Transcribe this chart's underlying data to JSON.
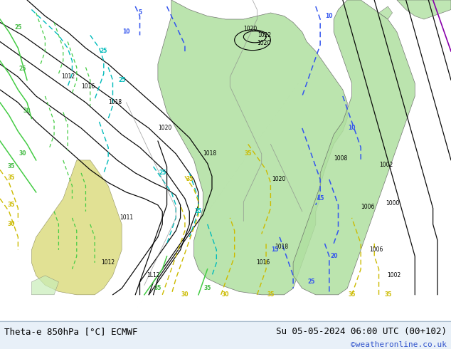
{
  "title_left": "Theta-e 850hPa [°C] ECMWF",
  "title_right": "Su 05-05-2024 06:00 UTC (00+102)",
  "copyright": "©weatheronline.co.uk",
  "fig_width": 6.34,
  "fig_height": 4.9,
  "dpi": 100,
  "title_fontsize": 9,
  "copyright_fontsize": 8,
  "copyright_color": "#3355cc",
  "map_bg": "#d8dce0",
  "green_fill": "#b0e0a0",
  "green_fill2": "#c8edb8",
  "yellow_fill": "#d8d870",
  "bottom_bg": "#e8f0f8"
}
